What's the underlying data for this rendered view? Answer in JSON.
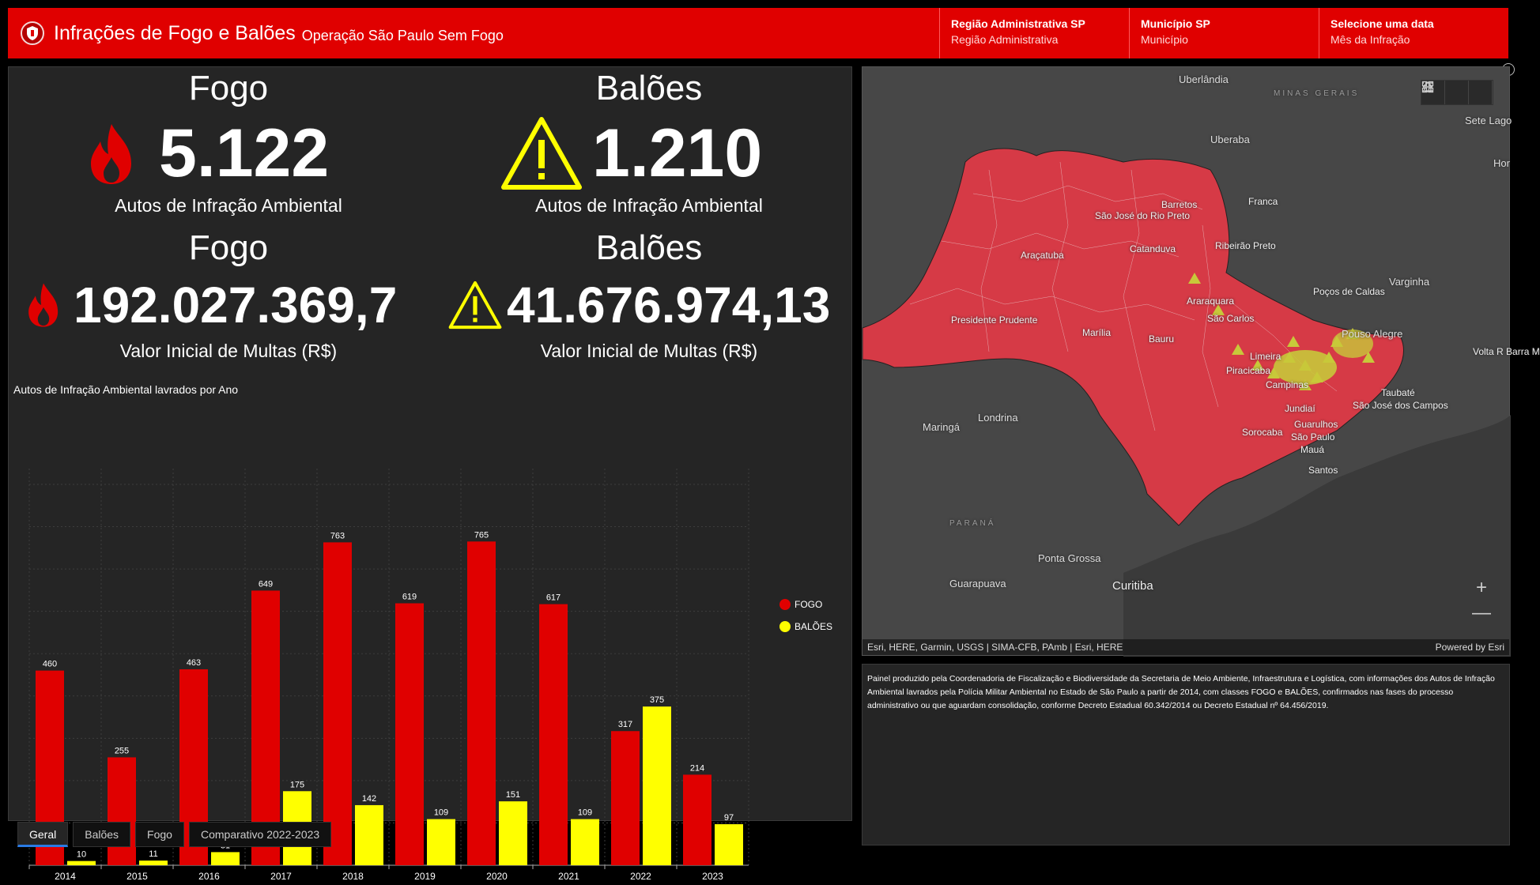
{
  "header": {
    "title": "Infrações de Fogo e Balões",
    "subtitle": "Operação São Paulo Sem Fogo",
    "filters": [
      {
        "title": "Região Administrativa SP",
        "value": "Região Administrativa"
      },
      {
        "title": "Município SP",
        "value": "Município"
      },
      {
        "title": "Selecione uma data",
        "value": "Mês da Infração"
      }
    ]
  },
  "indicators": {
    "fogo_count": {
      "title": "Fogo",
      "value": "5.122",
      "subtitle": "Autos de Infração Ambiental"
    },
    "baloes_count": {
      "title": "Balões",
      "value": "1.210",
      "subtitle": "Autos de Infração Ambiental"
    },
    "fogo_value": {
      "title": "Fogo",
      "value": "192.027.369,7",
      "subtitle": "Valor Inicial de Multas (R$)"
    },
    "baloes_value": {
      "title": "Balões",
      "value": "41.676.974,13",
      "subtitle": "Valor Inicial de Multas (R$)"
    }
  },
  "chart_title": "Autos de Infração Ambiental lavrados por Ano",
  "chart_data": {
    "type": "bar",
    "title": "Autos de Infração Ambiental lavrados por Ano",
    "categories": [
      "2014",
      "2015",
      "2016",
      "2017",
      "2018",
      "2019",
      "2020",
      "2021",
      "2022",
      "2023"
    ],
    "series": [
      {
        "name": "FOGO",
        "color": "#e00000",
        "values": [
          460,
          255,
          463,
          649,
          763,
          619,
          765,
          617,
          317,
          214
        ]
      },
      {
        "name": "BALÕES",
        "color": "#ffff00",
        "values": [
          10,
          11,
          31,
          175,
          142,
          109,
          151,
          109,
          375,
          97
        ]
      }
    ],
    "ylim": [
      0,
      900
    ],
    "grid": true,
    "legend": "right"
  },
  "tabs": [
    {
      "label": "Geral",
      "active": true
    },
    {
      "label": "Balões",
      "active": false
    },
    {
      "label": "Fogo",
      "active": false
    },
    {
      "label": "Comparativo 2022-2023",
      "active": false
    }
  ],
  "map": {
    "labels": {
      "uberlandia": "Uberlândia",
      "minas_gerais": "MINAS GERAIS",
      "sete_lagoas": "Sete Lago",
      "uberaba": "Uberaba",
      "hor": "Hor",
      "sao_jose_rio_preto": "São José do Rio Preto",
      "barretos": "Barretos",
      "franca": "Franca",
      "catanduva": "Catanduva",
      "aracatuba": "Araçatuba",
      "ribeirao_preto": "Ribeirão Preto",
      "pocos_caldas": "Poços de Caldas",
      "varginha": "Varginha",
      "araraquara": "Araraquara",
      "presidente_prudente": "Presidente Prudente",
      "sao_carlos": "São Carlos",
      "marilia": "Marília",
      "bauru": "Bauru",
      "pouso_alegre": "Pouso Alegre",
      "volta_redonda": "Volta R Barra M",
      "limeira": "Limeira",
      "piracicaba": "Piracicaba",
      "campinas": "Campinas",
      "taubate": "Taubaté",
      "sao_jose_campos": "São José dos Campos",
      "jundiai": "Jundiaí",
      "guarulhos": "Guarulhos",
      "sao_paulo": "São Paulo",
      "maringa": "Maringá",
      "londrina": "Londrina",
      "sorocaba": "Sorocaba",
      "maua": "Mauá",
      "santos": "Santos",
      "parana": "PARANÁ",
      "ponta_grossa": "Ponta Grossa",
      "guarapuava": "Guarapuava",
      "curitiba": "Curitiba"
    },
    "attribution": "Esri, HERE, Garmin, USGS | SIMA-CFB, PAmb | Esri, HERE",
    "powered_by": "Powered by Esri",
    "zoom_in": "+",
    "zoom_out": "—",
    "colors": {
      "fogo": "#d63a46",
      "baloes": "#c8c83a"
    }
  },
  "description": "Painel produzido pela Coordenadoria de Fiscalização e Biodiversidade da Secretaria de Meio Ambiente, Infraestrutura e Logística, com informações dos Autos de Infração Ambiental lavrados pela Polícia Militar Ambiental no Estado de São Paulo a partir de 2014, com classes FOGO e BALÕES, confirmados nas fases do processo administrativo ou que aguardam consolidação, conforme Decreto Estadual 60.342/2014 ou Decreto Estadual nº 64.456/2019."
}
